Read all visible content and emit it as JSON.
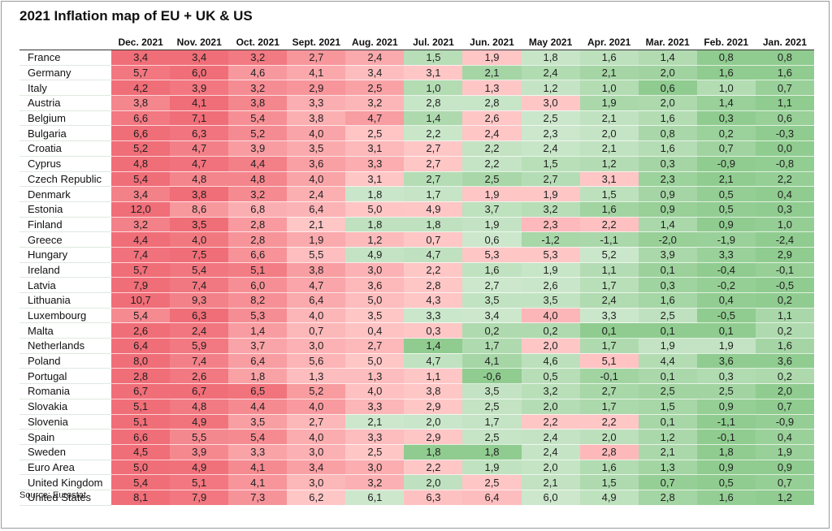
{
  "title": "2021 Inflation map of EU + UK & US",
  "source": "Source: Eurostat",
  "chart_data": {
    "type": "heatmap",
    "title": "2021 Inflation map of EU + UK & US",
    "columns": [
      "Dec. 2021",
      "Nov. 2021",
      "Oct. 2021",
      "Sept. 2021",
      "Aug. 2021",
      "Jul. 2021",
      "Jun. 2021",
      "May 2021",
      "Apr. 2021",
      "Mar. 2021",
      "Feb. 2021",
      "Jan. 2021"
    ],
    "color_scale": {
      "low": "#90cc90",
      "mid": "#ffc6c6",
      "high": "#f06e78"
    },
    "rows": [
      {
        "label": "France",
        "values": [
          "3,4",
          "3,4",
          "3,2",
          "2,7",
          "2,4",
          "1,5",
          "1,9",
          "1,8",
          "1,6",
          "1,4",
          "0,8",
          "0,8"
        ]
      },
      {
        "label": "Germany",
        "values": [
          "5,7",
          "6,0",
          "4,6",
          "4,1",
          "3,4",
          "3,1",
          "2,1",
          "2,4",
          "2,1",
          "2,0",
          "1,6",
          "1,6"
        ]
      },
      {
        "label": "Italy",
        "values": [
          "4,2",
          "3,9",
          "3,2",
          "2,9",
          "2,5",
          "1,0",
          "1,3",
          "1,2",
          "1,0",
          "0,6",
          "1,0",
          "0,7"
        ]
      },
      {
        "label": "Austria",
        "values": [
          "3,8",
          "4,1",
          "3,8",
          "3,3",
          "3,2",
          "2,8",
          "2,8",
          "3,0",
          "1,9",
          "2,0",
          "1,4",
          "1,1"
        ]
      },
      {
        "label": "Belgium",
        "values": [
          "6,6",
          "7,1",
          "5,4",
          "3,8",
          "4,7",
          "1,4",
          "2,6",
          "2,5",
          "2,1",
          "1,6",
          "0,3",
          "0,6"
        ]
      },
      {
        "label": "Bulgaria",
        "values": [
          "6,6",
          "6,3",
          "5,2",
          "4,0",
          "2,5",
          "2,2",
          "2,4",
          "2,3",
          "2,0",
          "0,8",
          "0,2",
          "-0,3"
        ]
      },
      {
        "label": "Croatia",
        "values": [
          "5,2",
          "4,7",
          "3,9",
          "3,5",
          "3,1",
          "2,7",
          "2,2",
          "2,4",
          "2,1",
          "1,6",
          "0,7",
          "0,0"
        ]
      },
      {
        "label": "Cyprus",
        "values": [
          "4,8",
          "4,7",
          "4,4",
          "3,6",
          "3,3",
          "2,7",
          "2,2",
          "1,5",
          "1,2",
          "0,3",
          "-0,9",
          "-0,8"
        ]
      },
      {
        "label": "Czech Republic",
        "values": [
          "5,4",
          "4,8",
          "4,8",
          "4,0",
          "3,1",
          "2,7",
          "2,5",
          "2,7",
          "3,1",
          "2,3",
          "2,1",
          "2,2"
        ]
      },
      {
        "label": "Denmark",
        "values": [
          "3,4",
          "3,8",
          "3,2",
          "2,4",
          "1,8",
          "1,7",
          "1,9",
          "1,9",
          "1,5",
          "0,9",
          "0,5",
          "0,4"
        ]
      },
      {
        "label": "Estonia",
        "values": [
          "12,0",
          "8,6",
          "6,8",
          "6,4",
          "5,0",
          "4,9",
          "3,7",
          "3,2",
          "1,6",
          "0,9",
          "0,5",
          "0,3"
        ]
      },
      {
        "label": "Finland",
        "values": [
          "3,2",
          "3,5",
          "2,8",
          "2,1",
          "1,8",
          "1,8",
          "1,9",
          "2,3",
          "2,2",
          "1,4",
          "0,9",
          "1,0"
        ]
      },
      {
        "label": "Greece",
        "values": [
          "4,4",
          "4,0",
          "2,8",
          "1,9",
          "1,2",
          "0,7",
          "0,6",
          "-1,2",
          "-1,1",
          "-2,0",
          "-1,9",
          "-2,4"
        ]
      },
      {
        "label": "Hungary",
        "values": [
          "7,4",
          "7,5",
          "6,6",
          "5,5",
          "4,9",
          "4,7",
          "5,3",
          "5,3",
          "5,2",
          "3,9",
          "3,3",
          "2,9"
        ]
      },
      {
        "label": "Ireland",
        "values": [
          "5,7",
          "5,4",
          "5,1",
          "3,8",
          "3,0",
          "2,2",
          "1,6",
          "1,9",
          "1,1",
          "0,1",
          "-0,4",
          "-0,1"
        ]
      },
      {
        "label": "Latvia",
        "values": [
          "7,9",
          "7,4",
          "6,0",
          "4,7",
          "3,6",
          "2,8",
          "2,7",
          "2,6",
          "1,7",
          "0,3",
          "-0,2",
          "-0,5"
        ]
      },
      {
        "label": "Lithuania",
        "values": [
          "10,7",
          "9,3",
          "8,2",
          "6,4",
          "5,0",
          "4,3",
          "3,5",
          "3,5",
          "2,4",
          "1,6",
          "0,4",
          "0,2"
        ]
      },
      {
        "label": "Luxembourg",
        "values": [
          "5,4",
          "6,3",
          "5,3",
          "4,0",
          "3,5",
          "3,3",
          "3,4",
          "4,0",
          "3,3",
          "2,5",
          "-0,5",
          "1,1"
        ]
      },
      {
        "label": "Malta",
        "values": [
          "2,6",
          "2,4",
          "1,4",
          "0,7",
          "0,4",
          "0,3",
          "0,2",
          "0,2",
          "0,1",
          "0,1",
          "0,1",
          "0,2"
        ]
      },
      {
        "label": "Netherlands",
        "values": [
          "6,4",
          "5,9",
          "3,7",
          "3,0",
          "2,7",
          "1,4",
          "1,7",
          "2,0",
          "1,7",
          "1,9",
          "1,9",
          "1,6"
        ]
      },
      {
        "label": "Poland",
        "values": [
          "8,0",
          "7,4",
          "6,4",
          "5,6",
          "5,0",
          "4,7",
          "4,1",
          "4,6",
          "5,1",
          "4,4",
          "3,6",
          "3,6"
        ]
      },
      {
        "label": "Portugal",
        "values": [
          "2,8",
          "2,6",
          "1,8",
          "1,3",
          "1,3",
          "1,1",
          "-0,6",
          "0,5",
          "-0,1",
          "0,1",
          "0,3",
          "0,2"
        ]
      },
      {
        "label": "Romania",
        "values": [
          "6,7",
          "6,7",
          "6,5",
          "5,2",
          "4,0",
          "3,8",
          "3,5",
          "3,2",
          "2,7",
          "2,5",
          "2,5",
          "2,0"
        ]
      },
      {
        "label": "Slovakia",
        "values": [
          "5,1",
          "4,8",
          "4,4",
          "4,0",
          "3,3",
          "2,9",
          "2,5",
          "2,0",
          "1,7",
          "1,5",
          "0,9",
          "0,7"
        ]
      },
      {
        "label": "Slovenia",
        "values": [
          "5,1",
          "4,9",
          "3,5",
          "2,7",
          "2,1",
          "2,0",
          "1,7",
          "2,2",
          "2,2",
          "0,1",
          "-1,1",
          "-0,9"
        ]
      },
      {
        "label": "Spain",
        "values": [
          "6,6",
          "5,5",
          "5,4",
          "4,0",
          "3,3",
          "2,9",
          "2,5",
          "2,4",
          "2,0",
          "1,2",
          "-0,1",
          "0,4"
        ]
      },
      {
        "label": "Sweden",
        "values": [
          "4,5",
          "3,9",
          "3,3",
          "3,0",
          "2,5",
          "1,8",
          "1,8",
          "2,4",
          "2,8",
          "2,1",
          "1,8",
          "1,9"
        ]
      },
      {
        "label": "Euro Area",
        "values": [
          "5,0",
          "4,9",
          "4,1",
          "3,4",
          "3,0",
          "2,2",
          "1,9",
          "2,0",
          "1,6",
          "1,3",
          "0,9",
          "0,9"
        ]
      },
      {
        "label": "United Kingdom",
        "values": [
          "5,4",
          "5,1",
          "4,1",
          "3,0",
          "3,2",
          "2,0",
          "2,5",
          "2,1",
          "1,5",
          "0,7",
          "0,5",
          "0,7"
        ]
      },
      {
        "label": "United States",
        "values": [
          "8,1",
          "7,9",
          "7,3",
          "6,2",
          "6,1",
          "6,3",
          "6,4",
          "6,0",
          "4,9",
          "2,8",
          "1,6",
          "1,2"
        ]
      }
    ]
  }
}
